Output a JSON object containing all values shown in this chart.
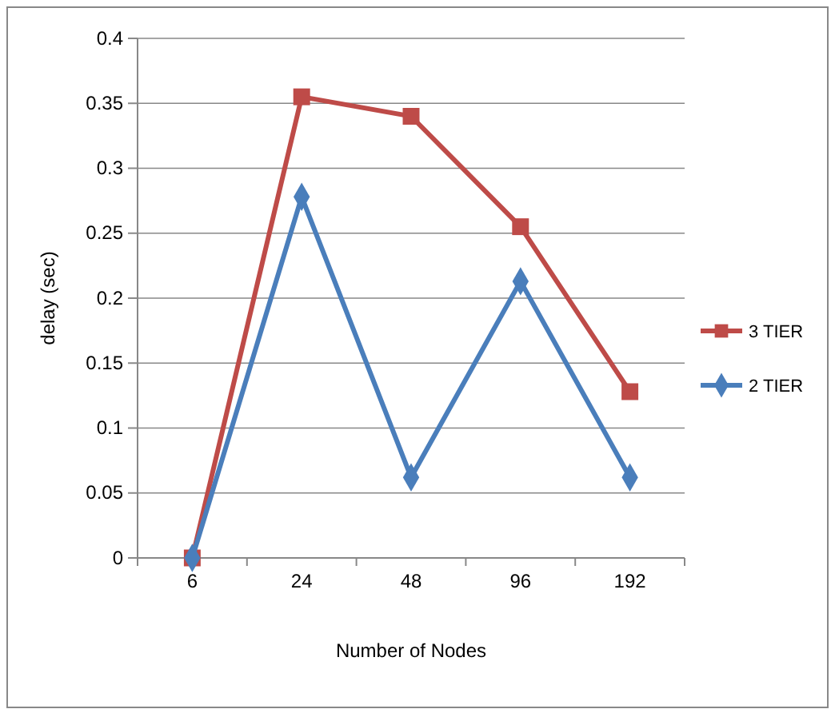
{
  "chart_data": {
    "type": "line",
    "xlabel": "Number of Nodes",
    "ylabel": "delay (sec)",
    "categories": [
      "6",
      "24",
      "48",
      "96",
      "192"
    ],
    "series": [
      {
        "name": "3 TIER",
        "color": "#be4b48",
        "marker": "square",
        "values": [
          0,
          0.355,
          0.34,
          0.255,
          0.128
        ]
      },
      {
        "name": "2 TIER",
        "color": "#4a7ebb",
        "marker": "diamond",
        "values": [
          0,
          0.278,
          0.062,
          0.213,
          0.062
        ]
      }
    ],
    "ylim": [
      0,
      0.4
    ],
    "yticks": [
      0,
      0.05,
      0.1,
      0.15,
      0.2,
      0.25,
      0.3,
      0.35,
      0.4
    ],
    "grid": "y",
    "legend": "right",
    "line_style": "solid"
  }
}
